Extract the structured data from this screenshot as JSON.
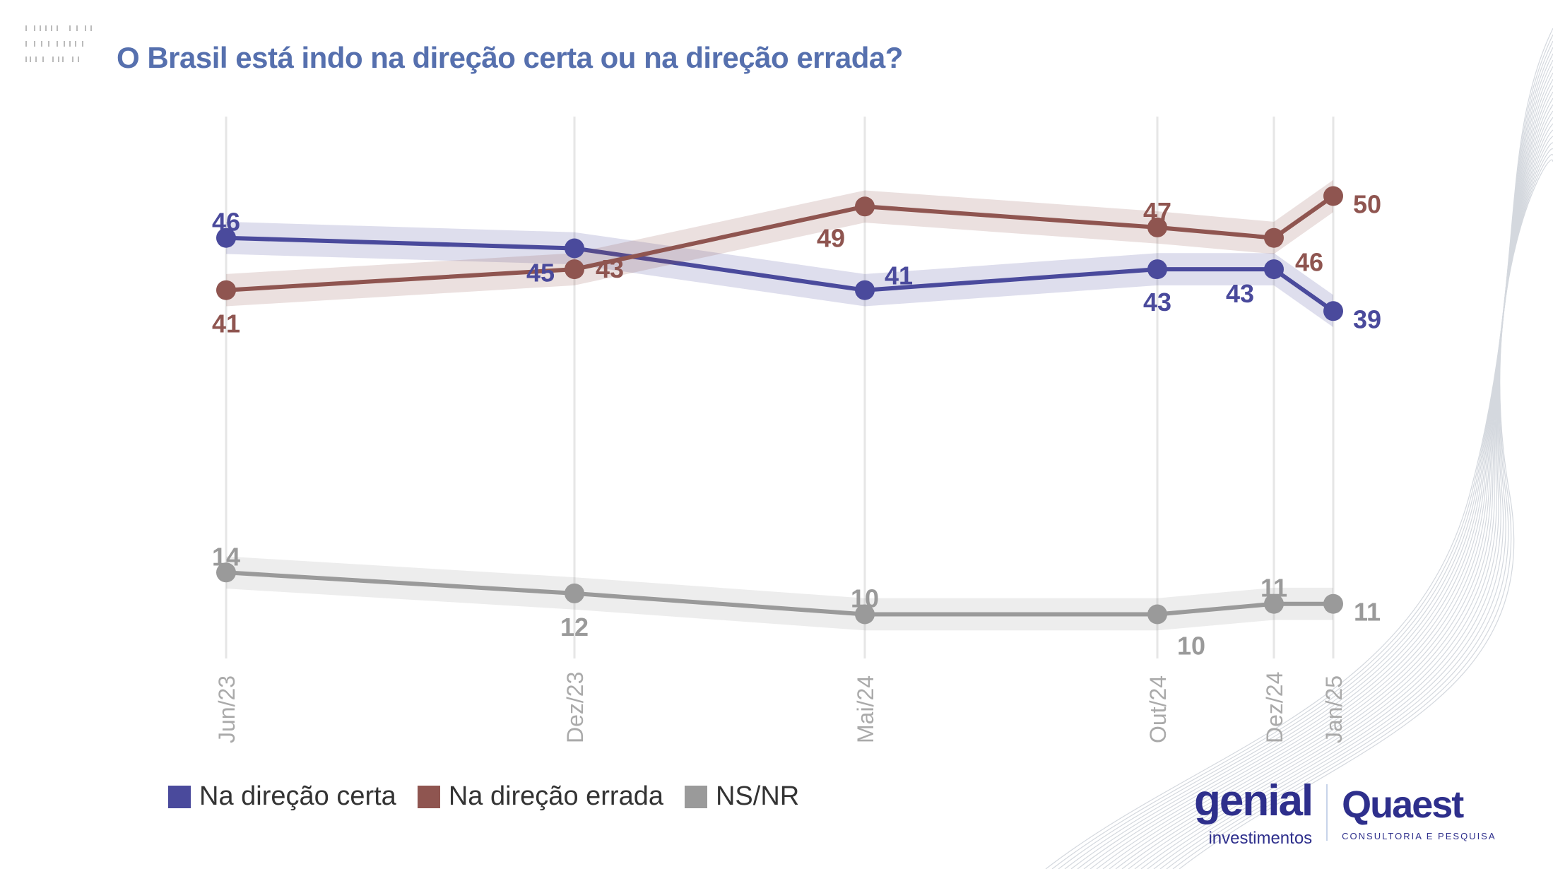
{
  "title": "O Brasil está indo na direção certa ou na direção errada?",
  "colors": {
    "title": "#5670ae",
    "certa": "#4a4a9c",
    "errada": "#8f5550",
    "nsnr": "#9a9a9a"
  },
  "chart_data": {
    "type": "line",
    "title": "O Brasil está indo na direção certa ou na direção errada?",
    "categories": [
      "Jun/23",
      "Dez/23",
      "Mai/24",
      "Out/24",
      "Dez/24",
      "Jan/25"
    ],
    "series": [
      {
        "name": "Na direção certa",
        "color": "#4a4a9c",
        "values": [
          46,
          45,
          41,
          43,
          43,
          39
        ]
      },
      {
        "name": "Na direção errada",
        "color": "#8f5550",
        "values": [
          41,
          43,
          49,
          47,
          46,
          50
        ]
      },
      {
        "name": "NS/NR",
        "color": "#9a9a9a",
        "values": [
          14,
          12,
          10,
          10,
          11,
          11
        ]
      }
    ],
    "ylim": [
      5,
      55
    ],
    "grid": "vertical",
    "legend": "bottom-left"
  },
  "logos": {
    "genial": "genial",
    "genial_sub": "investimentos",
    "quaest": "Quaest",
    "quaest_sub": "CONSULTORIA E PESQUISA"
  }
}
